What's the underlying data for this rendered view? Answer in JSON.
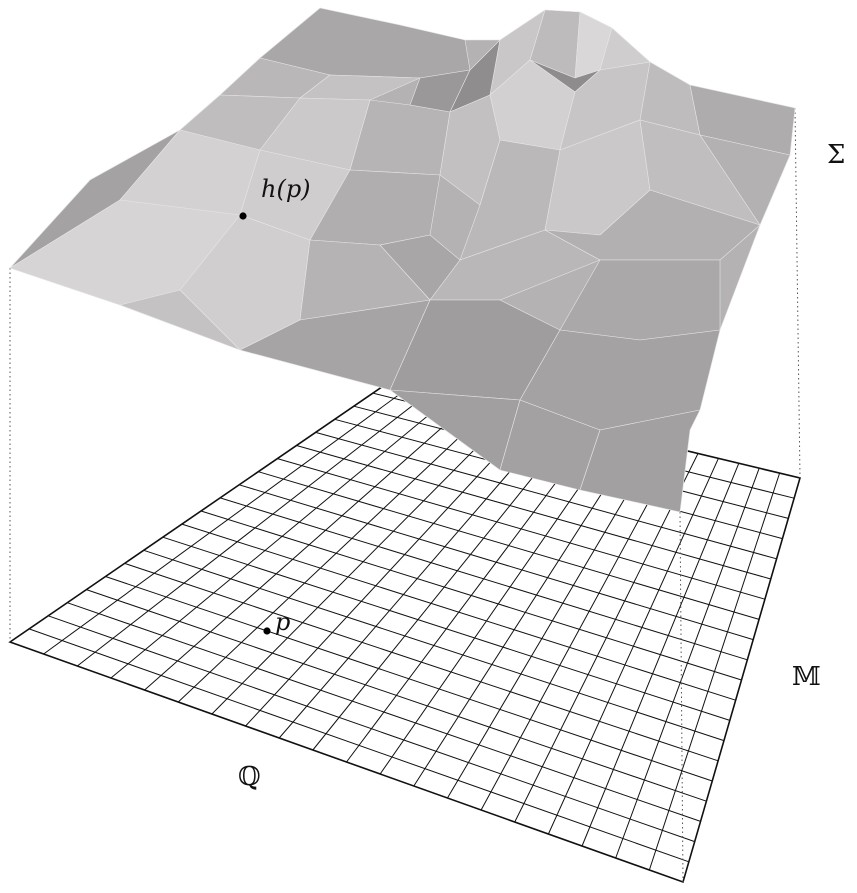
{
  "labels": {
    "surface": "Σ",
    "point_on_surface": "h(p)",
    "point_on_plane": "p",
    "plane_right": "𝕄",
    "plane_front": "ℚ"
  },
  "colors": {
    "background": "#ffffff",
    "grid_line": "#111111",
    "surface_light": "#d6d4d5",
    "surface_mid": "#bcbaba",
    "surface_dark": "#a3a1a1",
    "surface_edge": "#e6e6e6",
    "point": "#000000",
    "guide_line": "#555555"
  }
}
